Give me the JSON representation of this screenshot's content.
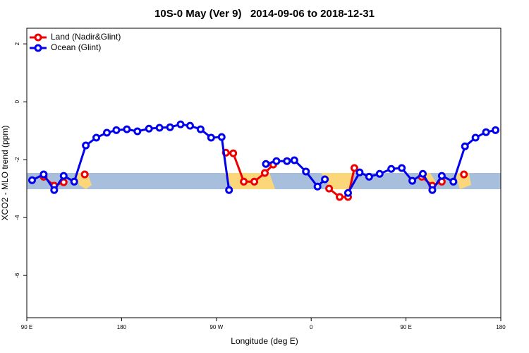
{
  "chart_data": {
    "type": "line",
    "title": "10S-0 May (Ver 9)   2014-09-06 to 2018-12-31",
    "xlabel": "Longitude (deg E)",
    "ylabel": "XCO2 - MLO trend (ppm)",
    "xlim": [
      90,
      540
    ],
    "ylim": [
      -7.46,
      2.54
    ],
    "xticks": [
      {
        "value": 90,
        "label": "90 E"
      },
      180,
      {
        "value": 270,
        "label": "90 W"
      },
      {
        "value": 360,
        "label": "0"
      },
      {
        "value": 450,
        "label": "90 E"
      },
      {
        "value": 540,
        "label": "180"
      }
    ],
    "yticks": [
      2,
      0,
      -2,
      -4,
      -6
    ],
    "legend": "top-left",
    "series": [
      {
        "name": "Land (Nadir&Glint)",
        "color": "#ee0000",
        "x": [
          106,
          116,
          125,
          null,
          145,
          null,
          279,
          286,
          296,
          306,
          316,
          324,
          null,
          377,
          387,
          395,
          401,
          null,
          465,
          475,
          484,
          null,
          505
        ],
        "values": [
          -2.59,
          -2.9,
          -2.78,
          null,
          -2.51,
          null,
          -1.76,
          -1.78,
          -2.76,
          -2.76,
          -2.46,
          -2.17,
          null,
          -3.0,
          -3.29,
          -3.29,
          -2.29,
          null,
          -2.59,
          -2.9,
          -2.76,
          null,
          -2.51
        ]
      },
      {
        "name": "Ocean (Glint)",
        "color": "#0000ee",
        "x": [
          95,
          106,
          116,
          125,
          135,
          146,
          156,
          166,
          175,
          185,
          195,
          206,
          216,
          226,
          236,
          245,
          255,
          265,
          275,
          282,
          null,
          317,
          327,
          337,
          344,
          355,
          366,
          373,
          null,
          395,
          406,
          415,
          425,
          436,
          446,
          456,
          466,
          475,
          484,
          495,
          506,
          516,
          526,
          535
        ],
        "values": [
          -2.71,
          -2.51,
          -3.05,
          -2.56,
          -2.76,
          -1.51,
          -1.24,
          -1.07,
          -0.98,
          -0.95,
          -1.02,
          -0.93,
          -0.9,
          -0.88,
          -0.78,
          -0.83,
          -0.95,
          -1.24,
          -1.22,
          -3.05,
          null,
          -2.15,
          -2.05,
          -2.05,
          -2.02,
          -2.41,
          -2.93,
          -2.68,
          null,
          -3.15,
          -2.44,
          -2.59,
          -2.49,
          -2.32,
          -2.29,
          -2.73,
          -2.49,
          -3.05,
          -2.56,
          -2.76,
          -1.54,
          -1.24,
          -1.05,
          -0.98
        ]
      }
    ]
  }
}
